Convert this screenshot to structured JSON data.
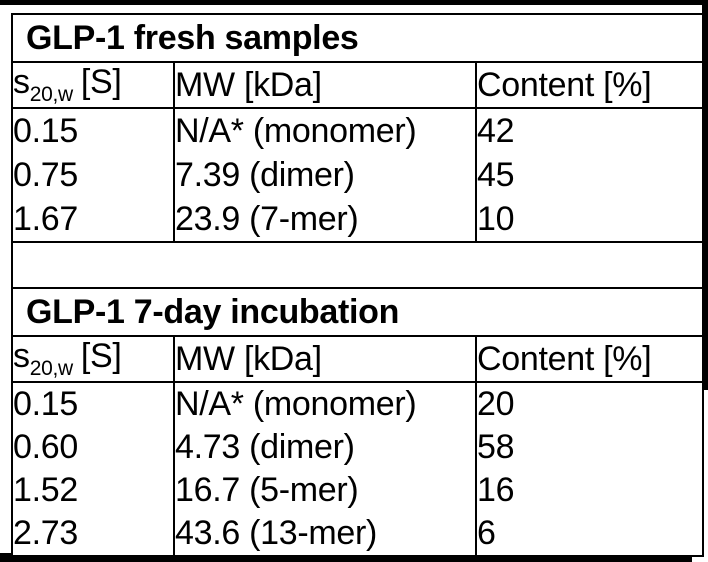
{
  "page": {
    "background": "#ffffff",
    "frame_color": "#000000",
    "text_color": "#000000"
  },
  "tables": [
    {
      "title": "GLP-1 fresh samples",
      "headers": {
        "s_base": "s",
        "s_sub": "20,w",
        "s_unit": "[S]",
        "mw": "MW [kDa]",
        "content": "Content [%]"
      },
      "rows": [
        {
          "s": "0.15",
          "mw": "N/A* (monomer)",
          "content": "42"
        },
        {
          "s": "0.75",
          "mw": "7.39 (dimer)",
          "content": "45"
        },
        {
          "s": "1.67",
          "mw": "23.9 (7-mer)",
          "content": "10"
        }
      ]
    },
    {
      "title": "GLP-1 7-day incubation",
      "headers": {
        "s_base": "s",
        "s_sub": "20,w",
        "s_unit": "[S]",
        "mw": "MW [kDa]",
        "content": "Content [%]"
      },
      "rows": [
        {
          "s": "0.15",
          "mw": "N/A* (monomer)",
          "content": "20"
        },
        {
          "s": "0.60",
          "mw": "4.73 (dimer)",
          "content": "58"
        },
        {
          "s": "1.52",
          "mw": "16.7 (5-mer)",
          "content": "16"
        },
        {
          "s": "2.73",
          "mw": "43.6 (13-mer)",
          "content": "6"
        }
      ]
    }
  ]
}
